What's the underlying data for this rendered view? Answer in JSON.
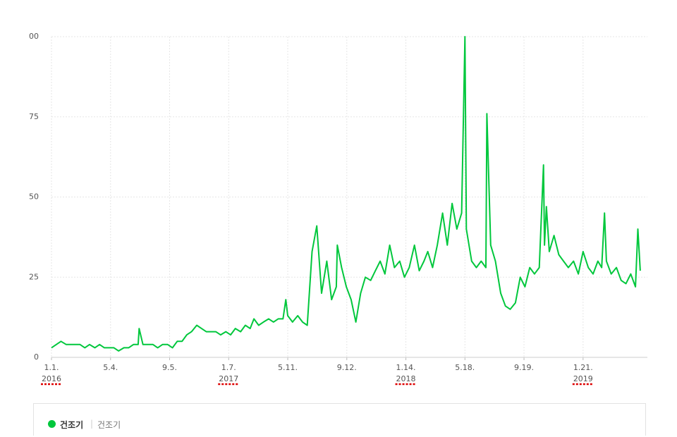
{
  "chart_data": {
    "type": "line",
    "x": [
      "2016-01-01",
      "2016-01-11",
      "2016-01-21",
      "2016-02-01",
      "2016-02-11",
      "2016-02-21",
      "2016-03-01",
      "2016-03-11",
      "2016-03-21",
      "2016-04-01",
      "2016-04-11",
      "2016-04-21",
      "2016-05-01",
      "2016-05-11",
      "2016-05-21",
      "2016-06-01",
      "2016-06-11",
      "2016-06-21",
      "2016-07-01",
      "2016-07-03",
      "2016-07-11",
      "2016-07-21",
      "2016-08-01",
      "2016-08-11",
      "2016-08-21",
      "2016-09-01",
      "2016-09-11",
      "2016-09-21",
      "2016-10-01",
      "2016-10-11",
      "2016-10-21",
      "2016-11-01",
      "2016-11-11",
      "2016-11-21",
      "2016-12-01",
      "2016-12-11",
      "2016-12-21",
      "2017-01-01",
      "2017-01-11",
      "2017-01-21",
      "2017-02-01",
      "2017-02-11",
      "2017-02-21",
      "2017-03-01",
      "2017-03-11",
      "2017-03-21",
      "2017-04-01",
      "2017-04-11",
      "2017-04-21",
      "2017-05-01",
      "2017-05-07",
      "2017-05-11",
      "2017-05-21",
      "2017-06-01",
      "2017-06-11",
      "2017-06-21",
      "2017-07-01",
      "2017-07-11",
      "2017-07-21",
      "2017-08-01",
      "2017-08-11",
      "2017-08-21",
      "2017-08-23",
      "2017-09-01",
      "2017-09-11",
      "2017-09-21",
      "2017-10-01",
      "2017-10-11",
      "2017-10-21",
      "2017-11-01",
      "2017-11-11",
      "2017-11-21",
      "2017-12-01",
      "2017-12-11",
      "2017-12-21",
      "2018-01-01",
      "2018-01-11",
      "2018-01-21",
      "2018-02-01",
      "2018-02-11",
      "2018-02-21",
      "2018-03-01",
      "2018-03-11",
      "2018-03-21",
      "2018-04-01",
      "2018-04-11",
      "2018-04-21",
      "2018-05-01",
      "2018-05-11",
      "2018-05-18",
      "2018-05-21",
      "2018-06-01",
      "2018-06-11",
      "2018-06-21",
      "2018-07-01",
      "2018-07-03",
      "2018-07-11",
      "2018-07-21",
      "2018-08-01",
      "2018-08-11",
      "2018-08-21",
      "2018-09-01",
      "2018-09-11",
      "2018-09-21",
      "2018-10-01",
      "2018-10-11",
      "2018-10-21",
      "2018-10-30",
      "2018-11-01",
      "2018-11-05",
      "2018-11-11",
      "2018-11-21",
      "2018-12-01",
      "2018-12-11",
      "2018-12-21",
      "2019-01-01",
      "2019-01-11",
      "2019-01-21",
      "2019-02-01",
      "2019-02-11",
      "2019-02-21",
      "2019-03-01",
      "2019-03-07",
      "2019-03-11",
      "2019-03-21",
      "2019-04-01",
      "2019-04-11",
      "2019-04-21",
      "2019-05-01",
      "2019-05-11",
      "2019-05-16",
      "2019-05-21"
    ],
    "series": [
      {
        "name": "건조기",
        "color": "#00c73c",
        "values": [
          3,
          4,
          5,
          4,
          4,
          4,
          4,
          3,
          4,
          3,
          4,
          3,
          3,
          3,
          2,
          3,
          3,
          4,
          4,
          9,
          4,
          4,
          4,
          3,
          4,
          4,
          3,
          5,
          5,
          7,
          8,
          10,
          9,
          8,
          8,
          8,
          7,
          8,
          7,
          9,
          8,
          10,
          9,
          12,
          10,
          11,
          12,
          11,
          12,
          12,
          18,
          13,
          11,
          13,
          11,
          10,
          33,
          41,
          20,
          30,
          18,
          22,
          35,
          28,
          22,
          18,
          11,
          20,
          25,
          24,
          27,
          30,
          26,
          35,
          28,
          30,
          25,
          28,
          35,
          27,
          30,
          33,
          28,
          35,
          45,
          35,
          48,
          40,
          45,
          100,
          40,
          30,
          28,
          30,
          28,
          76,
          35,
          30,
          20,
          16,
          15,
          17,
          25,
          22,
          28,
          26,
          28,
          60,
          35,
          47,
          33,
          38,
          32,
          30,
          28,
          30,
          26,
          33,
          28,
          26,
          30,
          28,
          45,
          30,
          26,
          28,
          24,
          23,
          26,
          22,
          40,
          27
        ]
      }
    ],
    "xlim": [
      "2016-01-01",
      "2019-06-05"
    ],
    "xticks": [
      {
        "value": "2016-01-01",
        "label": "1.1."
      },
      {
        "value": "2016-05-04",
        "label": "5.4."
      },
      {
        "value": "2016-09-05",
        "label": "9.5."
      },
      {
        "value": "2017-01-07",
        "label": "1.7."
      },
      {
        "value": "2017-05-11",
        "label": "5.11."
      },
      {
        "value": "2017-09-12",
        "label": "9.12."
      },
      {
        "value": "2018-01-14",
        "label": "1.14."
      },
      {
        "value": "2018-05-18",
        "label": "5.18."
      },
      {
        "value": "2018-09-19",
        "label": "9.19."
      },
      {
        "value": "2019-01-21",
        "label": "1.21."
      }
    ],
    "year_labels": [
      {
        "value": "2016-01-01",
        "label": "2016"
      },
      {
        "value": "2017-01-07",
        "label": "2017"
      },
      {
        "value": "2018-01-14",
        "label": "2018"
      },
      {
        "value": "2019-01-21",
        "label": "2019"
      }
    ],
    "ylim": [
      0,
      100
    ],
    "yticks": [
      0,
      25,
      50,
      75,
      {
        "value": 100,
        "label": "00"
      }
    ],
    "grid": true,
    "keyword": "건조기"
  }
}
